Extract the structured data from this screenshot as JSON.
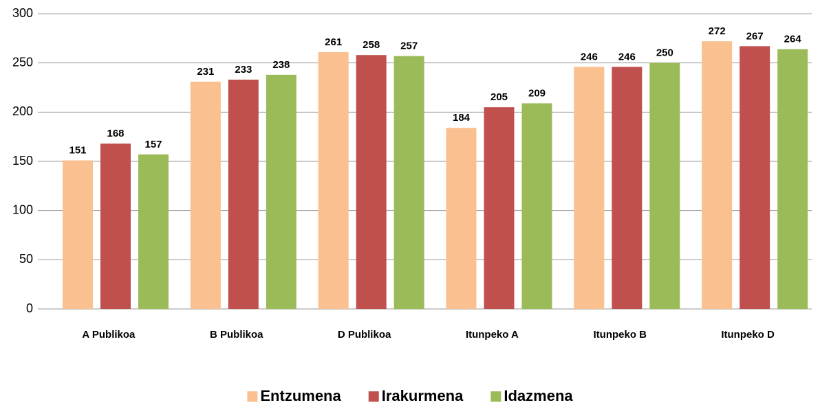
{
  "chart_data": {
    "type": "bar",
    "categories": [
      "A Publikoa",
      "B Publikoa",
      "D Publikoa",
      "Itunpeko A",
      "Itunpeko B",
      "Itunpeko D"
    ],
    "series": [
      {
        "name": "Entzumena",
        "color": "#FAC090",
        "values": [
          151,
          231,
          261,
          184,
          246,
          272
        ]
      },
      {
        "name": "Irakurmena",
        "color": "#C0504D",
        "values": [
          168,
          233,
          258,
          205,
          246,
          267
        ]
      },
      {
        "name": "Idazmena",
        "color": "#9BBB59",
        "values": [
          157,
          238,
          257,
          209,
          250,
          264
        ]
      }
    ],
    "ylim": [
      0,
      300
    ],
    "yticks": [
      0,
      50,
      100,
      150,
      200,
      250,
      300
    ],
    "grid": true,
    "legend": "bottom"
  }
}
